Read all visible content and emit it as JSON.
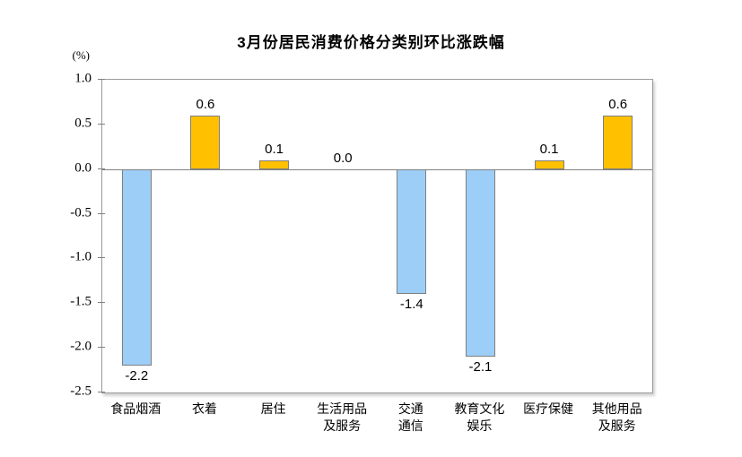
{
  "title": "3月份居民消费价格分类别环比涨跌幅",
  "colors": {
    "positive_bar": "#FFC000",
    "negative_bar": "#9CCEF8",
    "bar_border": "#7F7F7F",
    "axis_line": "#808080",
    "plot_border": "#9A9A9A",
    "text": "#000000",
    "background": "#FFFFFF"
  },
  "chart_data": {
    "type": "bar",
    "title": "3月份居民消费价格分类别环比涨跌幅",
    "ylabel": "(%)",
    "xlabel": "",
    "categories": [
      "食品烟酒",
      "衣着",
      "居住",
      "生活用品及服务",
      "交通通信",
      "教育文化娱乐",
      "医疗保健",
      "其他用品及服务"
    ],
    "category_lines": [
      [
        "食品烟酒"
      ],
      [
        "衣着"
      ],
      [
        "居住"
      ],
      [
        "生活用品",
        "及服务"
      ],
      [
        "交通",
        "通信"
      ],
      [
        "教育文化",
        "娱乐"
      ],
      [
        "医疗保健"
      ],
      [
        "其他用品",
        "及服务"
      ]
    ],
    "values": [
      -2.2,
      0.6,
      0.1,
      0.0,
      -1.4,
      -2.1,
      0.1,
      0.6
    ],
    "data_labels": [
      "-2.2",
      "0.6",
      "0.1",
      "0.0",
      "-1.4",
      "-2.1",
      "0.1",
      "0.6"
    ],
    "ylim": [
      -2.5,
      1.0
    ],
    "yticks": [
      1.0,
      0.5,
      0.0,
      -0.5,
      -1.0,
      -1.5,
      -2.0,
      -2.5
    ],
    "ytick_labels": [
      "1.0",
      "0.5",
      "0.0",
      "-0.5",
      "-1.0",
      "-1.5",
      "-2.0",
      "-2.5"
    ],
    "grid": false,
    "legend": "none"
  }
}
